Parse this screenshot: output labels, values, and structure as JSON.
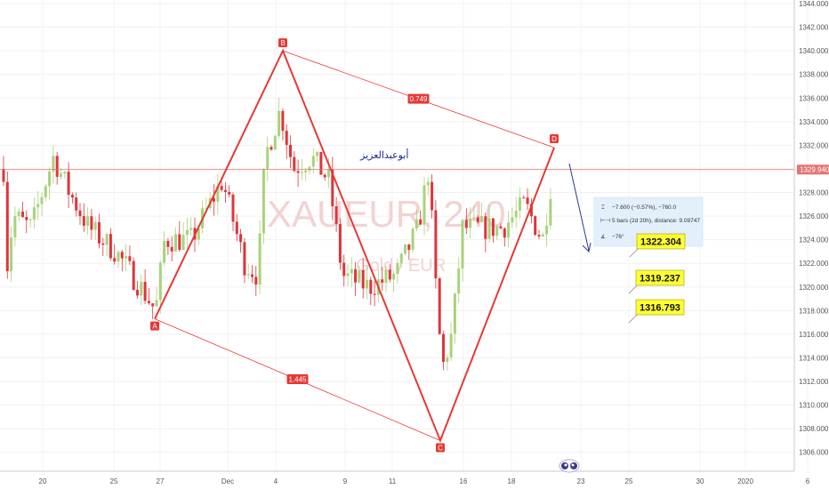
{
  "chart_data": {
    "type": "candlestick",
    "watermark": "XAUEUR, 240",
    "watermark_sub": "Gold / EUR",
    "author": "أبوعبدالعزيز",
    "y_range": [
      1304.4,
      1344.3
    ],
    "y_ticks": [
      "1306.000",
      "1308.000",
      "1310.000",
      "1312.000",
      "1314.000",
      "1316.000",
      "1318.000",
      "1320.000",
      "1322.000",
      "1324.000",
      "1326.000",
      "1328.000",
      "1330.000",
      "1332.000",
      "1334.000",
      "1336.000",
      "1338.000",
      "1340.000",
      "1342.000",
      "1344.000"
    ],
    "x_ticks": [
      "20",
      "25",
      "27",
      "Dec",
      "4",
      "9",
      "11",
      "16",
      "18",
      "23",
      "25",
      "30",
      "2020",
      "6"
    ],
    "current_price": "1329.940",
    "pattern": {
      "points": [
        {
          "label": "A",
          "price": 1317.3
        },
        {
          "label": "B",
          "price": 1340.0
        },
        {
          "label": "C",
          "price": 1307.0
        },
        {
          "label": "D",
          "price": 1331.8
        }
      ],
      "ratios": [
        "0.749",
        "1.445"
      ]
    },
    "measure": {
      "line1": "−7.600 (−0.57%), −760.0",
      "line2": "5 bars (2d 20h), distance: 9.09747",
      "line3": "−76°"
    },
    "targets": [
      "1322.304",
      "1319.237",
      "1316.793"
    ],
    "colors": {
      "up": "#a8d37a",
      "down": "#e0343a",
      "pattern": "#e53935",
      "current": "#e57373"
    }
  }
}
